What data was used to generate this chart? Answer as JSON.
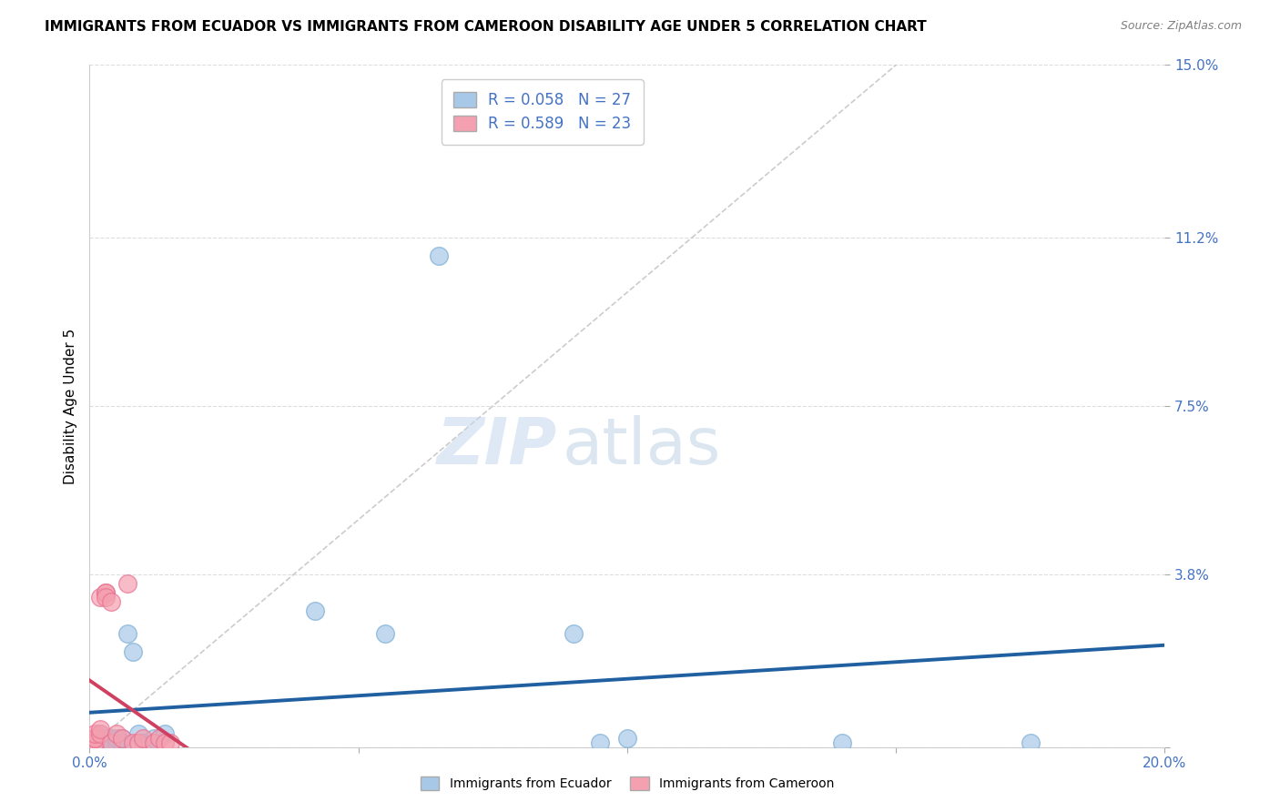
{
  "title": "IMMIGRANTS FROM ECUADOR VS IMMIGRANTS FROM CAMEROON DISABILITY AGE UNDER 5 CORRELATION CHART",
  "source": "Source: ZipAtlas.com",
  "ylabel": "Disability Age Under 5",
  "xlim": [
    0.0,
    0.2
  ],
  "ylim": [
    0.0,
    0.15
  ],
  "xticks": [
    0.0,
    0.05,
    0.1,
    0.15,
    0.2
  ],
  "xticklabels": [
    "0.0%",
    "",
    "",
    "",
    "20.0%"
  ],
  "yticks": [
    0.0,
    0.038,
    0.075,
    0.112,
    0.15
  ],
  "yticklabels": [
    "",
    "3.8%",
    "7.5%",
    "11.2%",
    "15.0%"
  ],
  "ecuador_color": "#a8c8e8",
  "cameroon_color": "#f4a0b0",
  "ecuador_edge_color": "#7aadd4",
  "cameroon_edge_color": "#e87090",
  "ecuador_R": 0.058,
  "ecuador_N": 27,
  "cameroon_R": 0.589,
  "cameroon_N": 23,
  "ecuador_x": [
    0.001,
    0.001,
    0.002,
    0.002,
    0.002,
    0.003,
    0.003,
    0.004,
    0.004,
    0.005,
    0.005,
    0.006,
    0.006,
    0.007,
    0.008,
    0.009,
    0.01,
    0.012,
    0.014,
    0.042,
    0.055,
    0.065,
    0.09,
    0.095,
    0.1,
    0.14,
    0.175
  ],
  "ecuador_y": [
    0.001,
    0.002,
    0.001,
    0.002,
    0.003,
    0.001,
    0.002,
    0.002,
    0.001,
    0.001,
    0.002,
    0.002,
    0.001,
    0.025,
    0.021,
    0.003,
    0.001,
    0.002,
    0.003,
    0.03,
    0.025,
    0.108,
    0.025,
    0.001,
    0.002,
    0.001,
    0.001
  ],
  "cameroon_x": [
    0.001,
    0.001,
    0.001,
    0.001,
    0.001,
    0.002,
    0.002,
    0.002,
    0.003,
    0.003,
    0.003,
    0.004,
    0.004,
    0.005,
    0.006,
    0.007,
    0.008,
    0.009,
    0.01,
    0.012,
    0.013,
    0.014,
    0.015
  ],
  "cameroon_y": [
    0.001,
    0.002,
    0.001,
    0.002,
    0.003,
    0.003,
    0.004,
    0.033,
    0.034,
    0.034,
    0.033,
    0.032,
    0.001,
    0.003,
    0.002,
    0.036,
    0.001,
    0.001,
    0.002,
    0.001,
    0.002,
    0.001,
    0.001
  ],
  "watermark_zip": "ZIP",
  "watermark_atlas": "atlas",
  "background_color": "#ffffff",
  "grid_color": "#dddddd",
  "diagonal_color": "#cccccc",
  "title_fontsize": 11,
  "axis_label_fontsize": 11,
  "tick_fontsize": 11,
  "legend_fontsize": 12,
  "scatter_size": 200,
  "ecuador_line_color": "#2060a0",
  "cameroon_line_color": "#d04060",
  "tick_color": "#4472c4"
}
